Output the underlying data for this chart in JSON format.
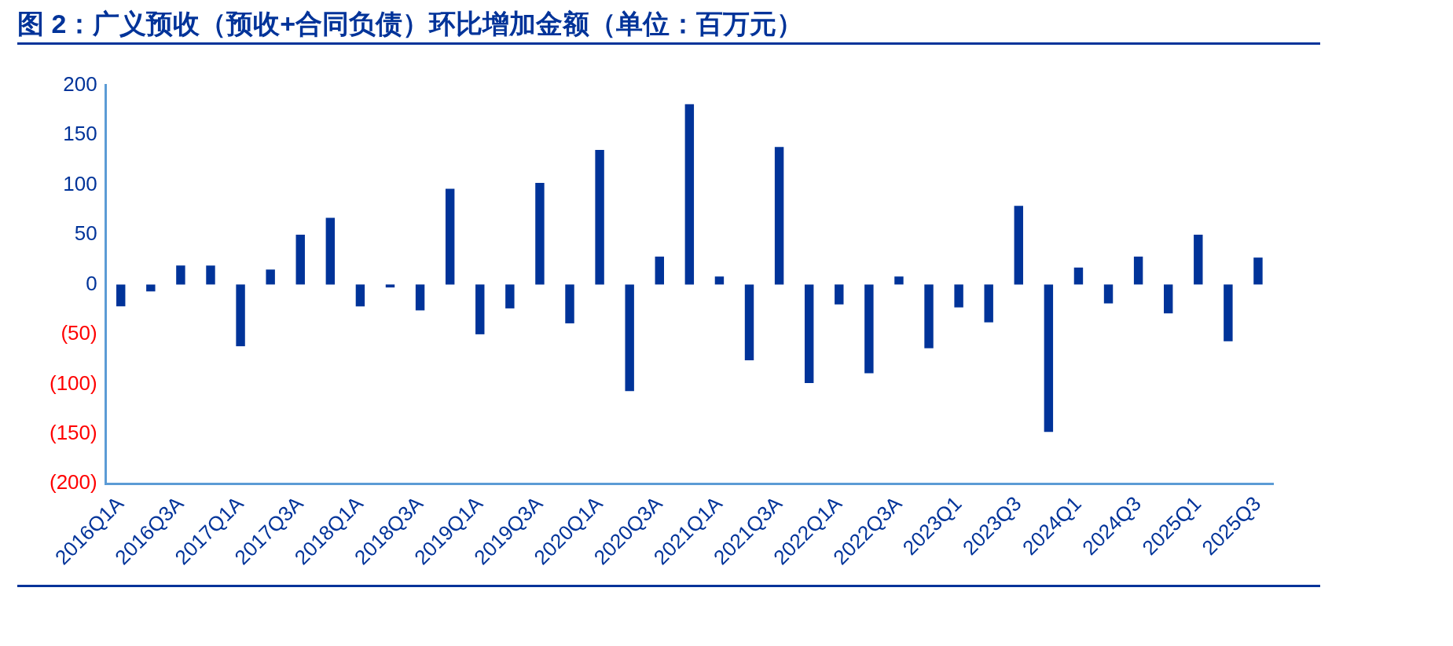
{
  "chart_data": {
    "type": "bar",
    "title": "图 2：广义预收（预收+合同负债）环比增加金额（单位：百万元）",
    "categories": [
      "2016Q1A",
      null,
      "2016Q3A",
      null,
      "2017Q1A",
      null,
      "2017Q3A",
      null,
      "2018Q1A",
      null,
      "2018Q3A",
      null,
      "2019Q1A",
      null,
      "2019Q3A",
      null,
      "2020Q1A",
      null,
      "2020Q3A",
      null,
      "2021Q1A",
      null,
      "2021Q3A",
      null,
      "2022Q1A",
      null,
      "2022Q3A",
      null,
      "2023Q1",
      null,
      "2023Q3",
      null,
      "2024Q1",
      null,
      "2024Q3",
      null,
      "2025Q1",
      null,
      "2025Q3"
    ],
    "values": [
      -22,
      -7,
      19,
      19,
      -62,
      15,
      50,
      67,
      -22,
      -3,
      -26,
      96,
      -50,
      -24,
      102,
      -39,
      135,
      -107,
      28,
      181,
      8,
      -76,
      138,
      -99,
      -20,
      -89,
      8,
      -64,
      -23,
      -38,
      79,
      -148,
      17,
      -19,
      28,
      -29,
      50,
      -57,
      27
    ],
    "color": "#003399",
    "ylim": [
      -200,
      200
    ],
    "yticks": [
      {
        "value": -200,
        "label": "(200)"
      },
      {
        "value": -150,
        "label": "(150)"
      },
      {
        "value": -100,
        "label": "(100)"
      },
      {
        "value": -50,
        "label": "(50)"
      },
      0,
      50,
      100,
      150,
      200
    ],
    "grid": false,
    "legend": false
  }
}
